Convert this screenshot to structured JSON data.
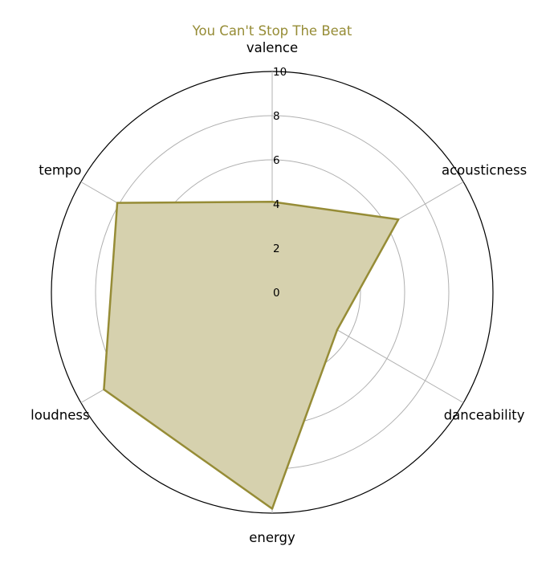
{
  "chart_data": {
    "type": "radar",
    "title": "You Can't Stop The Beat",
    "axes": [
      "valence",
      "acousticness",
      "danceability",
      "energy",
      "loudness",
      "tempo"
    ],
    "values": [
      4.1,
      6.6,
      3.4,
      9.8,
      8.8,
      8.1
    ],
    "rlim": [
      0,
      10
    ],
    "rticks": [
      0,
      2,
      4,
      6,
      8,
      10
    ],
    "grid": true,
    "colors": {
      "series_line": "#968c36",
      "series_fill": "#d6d1ae",
      "title": "#968c36",
      "grid": "#b0b0b0",
      "frame": "#000000"
    }
  }
}
